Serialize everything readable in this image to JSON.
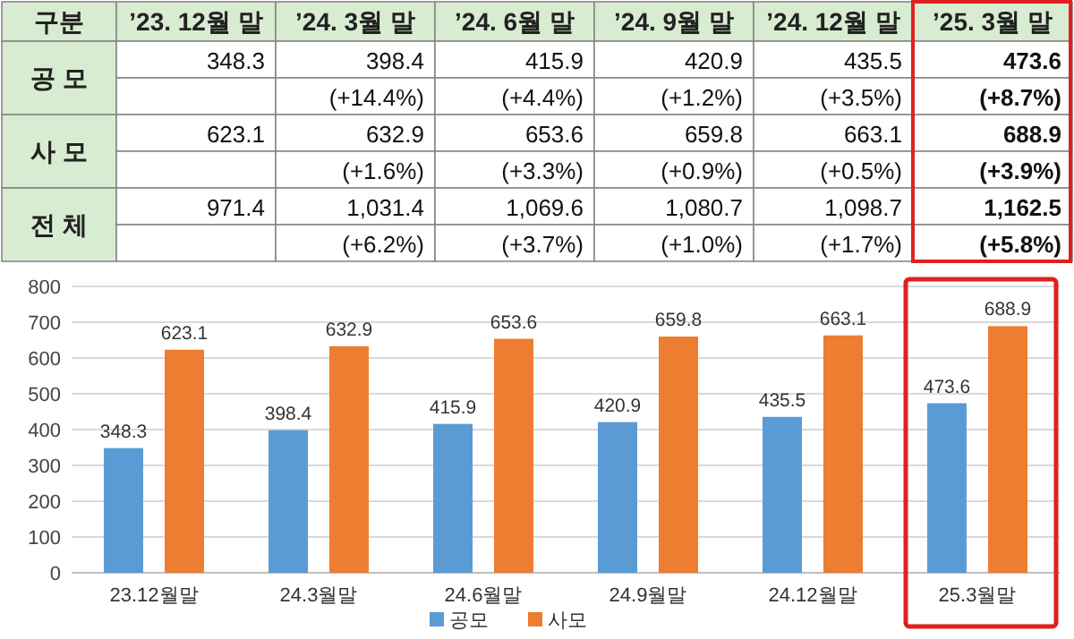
{
  "chart_data": [
    {
      "type": "other",
      "annotations": [
        "구분",
        "’23. 12월 말",
        "’24. 3월 말",
        "’24. 6월 말",
        "’24. 9월 말",
        "’24. 12월 말",
        "’25. 3월 말",
        "공 모",
        "348.3",
        "398.4",
        "415.9",
        "420.9",
        "435.5",
        "473.6",
        "(+14.4%)",
        "(+4.4%)",
        "(+1.2%)",
        "(+3.5%)",
        "(+8.7%)",
        "사 모",
        "623.1",
        "632.9",
        "653.6",
        "659.8",
        "663.1",
        "688.9",
        "(+1.6%)",
        "(+3.3%)",
        "(+0.9%)",
        "(+0.5%)",
        "(+3.9%)",
        "전 체",
        "971.4",
        "1,031.4",
        "1,069.6",
        "1,080.7",
        "1,098.7",
        "1,162.5",
        "(+6.2%)",
        "(+3.7%)",
        "(+1.0%)",
        "(+1.7%)",
        "(+5.8%)"
      ]
    },
    {
      "type": "bar",
      "categories": [
        "23.12월말",
        "24.3월말",
        "24.6월말",
        "24.9월말",
        "24.12월말",
        "25.3월말"
      ],
      "series": [
        {
          "name": "공모",
          "color": "#5b9bd5",
          "values": [
            348.3,
            398.4,
            415.9,
            420.9,
            435.5,
            473.6
          ]
        },
        {
          "name": "사모",
          "color": "#ed7d31",
          "values": [
            623.1,
            632.9,
            653.6,
            659.8,
            663.1,
            688.9
          ]
        }
      ],
      "ylim": [
        0,
        800
      ],
      "yticks": [
        0,
        100,
        200,
        300,
        400,
        500,
        600,
        700,
        800
      ],
      "grid": "y",
      "legend": "bottom",
      "data_labels": true
    }
  ]
}
